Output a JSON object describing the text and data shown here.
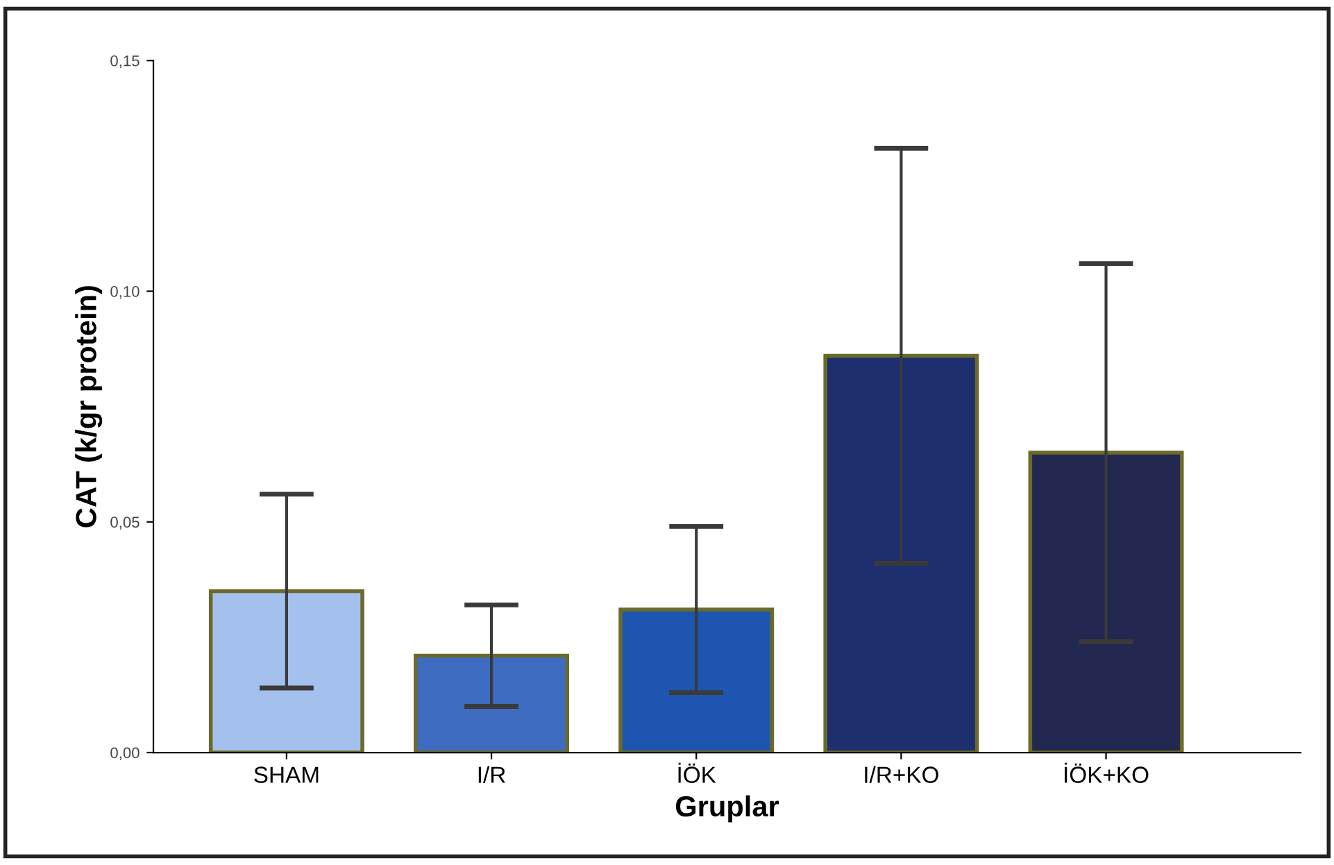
{
  "chart_data": {
    "type": "bar",
    "xlabel": "Gruplar",
    "ylabel": "CAT (k/gr protein)",
    "categories": [
      "SHAM",
      "I/R",
      "İÖK",
      "I/R+KO",
      "İÖK+KO"
    ],
    "values": [
      0.035,
      0.021,
      0.031,
      0.086,
      0.065
    ],
    "errors": [
      0.021,
      0.011,
      0.018,
      0.045,
      0.041
    ],
    "colors": [
      "#a4c0ec",
      "#3d6cc0",
      "#1d55b0",
      "#1d2f6e",
      "#232850"
    ],
    "ylim": [
      0,
      0.15
    ],
    "yticks": [
      {
        "value": 0,
        "label": "0,00"
      },
      {
        "value": 0.05,
        "label": "0,05"
      },
      {
        "value": 0.1,
        "label": "0,10"
      },
      {
        "value": 0.15,
        "label": "0,15"
      }
    ],
    "grid": false,
    "legend": false
  }
}
